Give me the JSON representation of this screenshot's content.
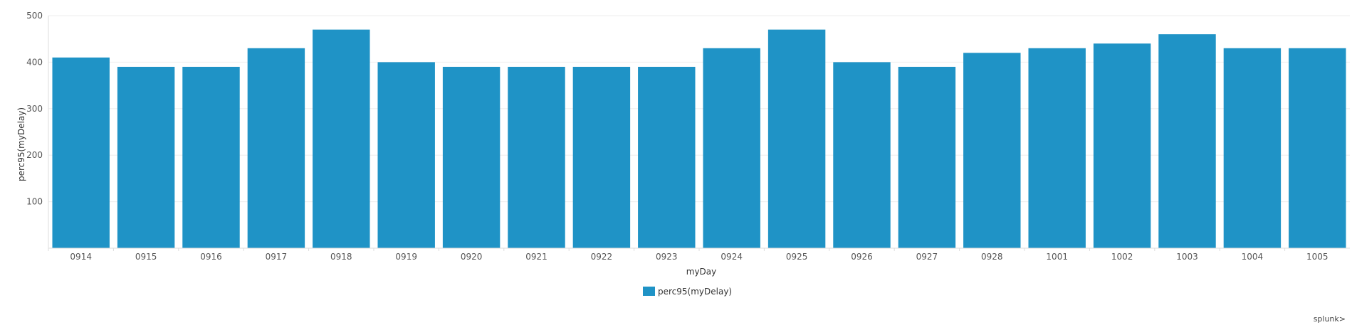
{
  "chart_data": {
    "type": "bar",
    "categories": [
      "0914",
      "0915",
      "0916",
      "0917",
      "0918",
      "0919",
      "0920",
      "0921",
      "0922",
      "0923",
      "0924",
      "0925",
      "0926",
      "0927",
      "0928",
      "1001",
      "1002",
      "1003",
      "1004",
      "1005"
    ],
    "series": [
      {
        "name": "perc95(myDelay)",
        "values": [
          410,
          390,
          390,
          430,
          470,
          400,
          390,
          390,
          390,
          390,
          430,
          470,
          400,
          390,
          420,
          430,
          440,
          460,
          430,
          430
        ]
      }
    ],
    "title": "",
    "xlabel": "myDay",
    "ylabel": "perc95(myDelay)",
    "ylim": [
      0,
      500
    ],
    "yticks": [
      100,
      200,
      300,
      400,
      500
    ],
    "grid": true,
    "legend_position": "bottom"
  },
  "colors": {
    "bar": "#1f93c6",
    "gridline": "#eeeeee",
    "axis": "#dddddd"
  },
  "branding": {
    "text": "splunk>"
  }
}
